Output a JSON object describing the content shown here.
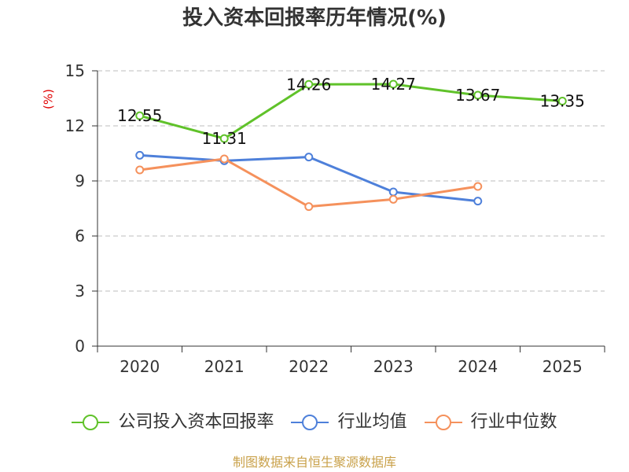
{
  "chart_data": {
    "type": "line",
    "title": "投入资本回报率历年情况(%)",
    "ylabel": "(%)",
    "ylim": [
      0,
      15
    ],
    "yticks": [
      0,
      3,
      6,
      9,
      12,
      15
    ],
    "grid": true,
    "legend_position": "bottom",
    "categories": [
      "2020",
      "2021",
      "2022",
      "2023",
      "2024",
      "2025"
    ],
    "series": [
      {
        "name": "公司投入资本回报率",
        "color": "#60c22a",
        "data_labels": true,
        "values": [
          12.55,
          11.31,
          14.26,
          14.27,
          13.67,
          13.35
        ]
      },
      {
        "name": "行业均值",
        "color": "#4e80da",
        "data_labels": false,
        "values": [
          10.4,
          10.1,
          10.3,
          8.4,
          7.9,
          null
        ]
      },
      {
        "name": "行业中位数",
        "color": "#f5915c",
        "data_labels": false,
        "values": [
          9.6,
          10.2,
          7.6,
          8.0,
          8.7,
          null
        ]
      }
    ]
  },
  "source_note": "制图数据来自恒生聚源数据库"
}
